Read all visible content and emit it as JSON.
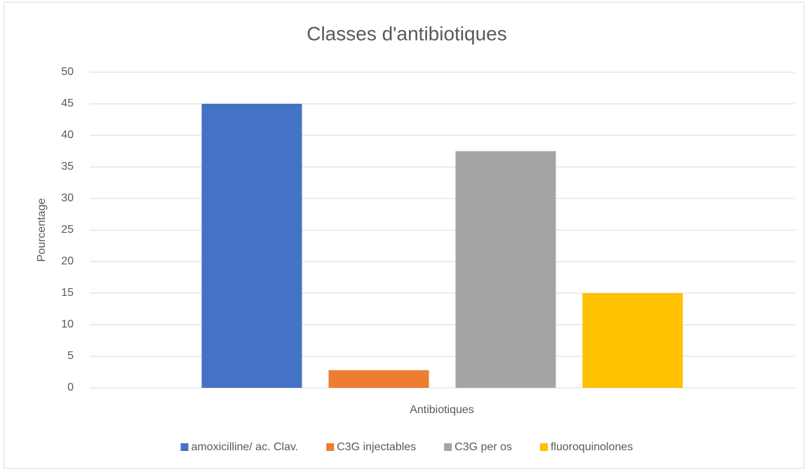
{
  "chart_data": {
    "type": "bar",
    "title": "Classes d'antibiotiques",
    "x_label": "Antibiotiques",
    "y_label": "Pourcentage",
    "categories": [
      null
    ],
    "series": [
      {
        "name": "amoxicilline/ ac. Clav.",
        "color": "#4472c4",
        "values": [
          45
        ]
      },
      {
        "name": "C3G injectables",
        "color": "#ed7d31",
        "values": [
          2.8
        ]
      },
      {
        "name": "C3G per os",
        "color": "#a5a5a5",
        "values": [
          37.5
        ]
      },
      {
        "name": "fluoroquinolones",
        "color": "#ffc000",
        "values": [
          15
        ]
      }
    ],
    "ylim": [
      0,
      50
    ],
    "yticks": [
      0,
      5,
      10,
      15,
      20,
      25,
      30,
      35,
      40,
      45,
      50
    ],
    "grid": true,
    "legend": "bottom"
  }
}
